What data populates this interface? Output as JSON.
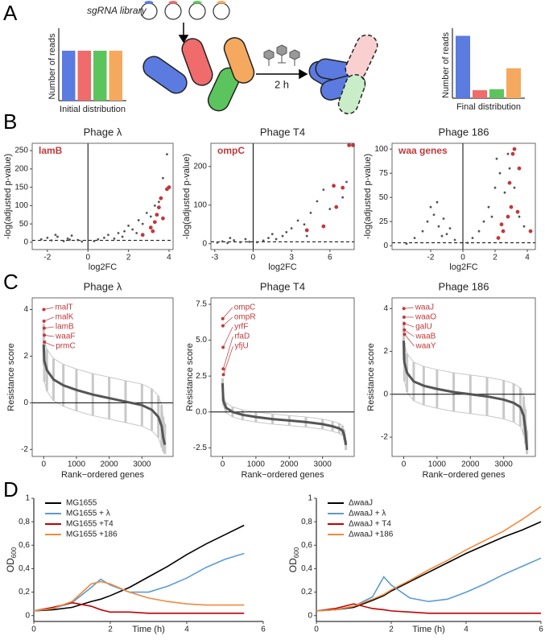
{
  "panel_labels": [
    "A",
    "B",
    "C",
    "D"
  ],
  "diagram": {
    "library_label": "sgRNA library",
    "time_label": "2 h"
  },
  "chart_data": [
    {
      "type": "bar",
      "ylabel": "Number of reads",
      "xlabel": "Initial distribution",
      "values": [
        1,
        1,
        1,
        1
      ],
      "colors": [
        "#5b7be0",
        "#f06b6b",
        "#5cc45c",
        "#f5a95e"
      ]
    },
    {
      "type": "bar",
      "ylabel": "Number of reads",
      "xlabel": "Final distribution",
      "values": [
        1.25,
        0.16,
        0.18,
        0.6
      ],
      "colors": [
        "#5b7be0",
        "#f06b6b",
        "#5cc45c",
        "#f5a95e"
      ]
    },
    {
      "type": "scatter",
      "title": "Phage λ",
      "annotation": "lamB",
      "xlabel": "log2FC",
      "ylabel": "-log(adjusted p-value)",
      "xlim": [
        -2.75,
        4.2
      ],
      "ylim": [
        -20,
        270
      ],
      "xticks": [
        -2,
        0,
        2,
        4
      ],
      "yticks": [
        0,
        50,
        100,
        150,
        200,
        250
      ],
      "threshold": 5,
      "series": [
        {
          "color": "#555555",
          "x": [
            -2.3,
            -2,
            -1.8,
            -1.5,
            -1.2,
            -1,
            -0.8,
            -0.5,
            -0.3,
            -1.6,
            -0.9,
            0.3,
            0.5,
            0.8,
            1,
            1.3,
            1.5,
            1.8,
            2,
            2.2,
            2.5,
            2.7,
            2.9,
            3.1,
            3.3,
            3.5,
            3.7,
            3.9,
            2.4,
            1.7
          ],
          "values": [
            8,
            12,
            5,
            15,
            3,
            10,
            18,
            6,
            2,
            20,
            7,
            3,
            8,
            12,
            20,
            10,
            25,
            30,
            45,
            35,
            60,
            50,
            80,
            70,
            100,
            110,
            175,
            240,
            25,
            15
          ]
        },
        {
          "color": "#c0393b",
          "x": [
            3.1,
            3.3,
            3.4,
            3.5,
            3.6,
            3.7,
            3.9,
            4.0,
            3.2,
            2.7
          ],
          "values": [
            40,
            55,
            75,
            95,
            120,
            65,
            145,
            150,
            30,
            20
          ]
        }
      ]
    },
    {
      "type": "scatter",
      "title": "Phage T4",
      "annotation": "ompC",
      "xlabel": "log2FC",
      "ylabel": "-log(adjusted p-value)",
      "xlim": [
        -3.3,
        7.9
      ],
      "ylim": [
        -15,
        260
      ],
      "xticks": [
        -3,
        0,
        3,
        6
      ],
      "yticks": [
        0,
        100,
        200
      ],
      "threshold": 5,
      "series": [
        {
          "color": "#555555",
          "x": [
            -2.8,
            -2.4,
            -2,
            -1.5,
            -1,
            -0.6,
            -0.3,
            -1.8,
            0.3,
            0.8,
            1.2,
            1.8,
            2.3,
            3,
            3.5,
            4,
            4.5,
            5,
            5.5,
            6,
            6.3,
            7,
            7.3,
            2.6,
            1.5,
            4.2
          ],
          "values": [
            3,
            6,
            2,
            9,
            4,
            12,
            5,
            15,
            4,
            8,
            15,
            12,
            20,
            40,
            60,
            50,
            80,
            110,
            140,
            90,
            150,
            120,
            160,
            30,
            25,
            20
          ]
        },
        {
          "color": "#c0393b",
          "x": [
            4.2,
            5.5,
            6.5,
            7,
            6.3,
            7.5,
            7.8
          ],
          "values": [
            35,
            45,
            95,
            145,
            150,
            255,
            255
          ]
        }
      ]
    },
    {
      "type": "scatter",
      "title": "Phage 186",
      "annotation": "waa genes",
      "xlabel": "log2FC",
      "ylabel": "-log(adjusted p-value)",
      "xlim": [
        -4.4,
        4.5
      ],
      "ylim": [
        -4,
        106
      ],
      "xticks": [
        -2,
        0,
        2,
        4
      ],
      "yticks": [
        0,
        25,
        50,
        75,
        100
      ],
      "threshold": 3,
      "series": [
        {
          "color": "#555555",
          "x": [
            -3.5,
            -3,
            -2.5,
            -2.2,
            -2,
            -1.8,
            -1.5,
            -1.2,
            -1,
            -0.8,
            -0.5,
            -1.6,
            -1.3,
            0.3,
            0.6,
            1,
            1.3,
            1.6,
            2,
            2.3,
            2.6,
            2.9,
            3.2,
            3.5,
            3.8,
            2.1,
            1.8,
            2.8
          ],
          "values": [
            2,
            8,
            15,
            25,
            40,
            32,
            20,
            28,
            12,
            18,
            6,
            45,
            10,
            3,
            8,
            15,
            25,
            40,
            60,
            75,
            55,
            80,
            60,
            30,
            20,
            90,
            30,
            95
          ]
        },
        {
          "color": "#c0393b",
          "x": [
            2.2,
            2.5,
            2.8,
            3.0,
            3.1,
            3.2,
            2.9,
            3.5,
            4.2,
            2.4,
            3.4
          ],
          "values": [
            8,
            15,
            30,
            40,
            95,
            100,
            65,
            80,
            15,
            22,
            35
          ]
        }
      ]
    },
    {
      "type": "rank",
      "title": "Phage λ",
      "xlabel": "Rank−ordered genes",
      "ylabel": "Resistance score",
      "xlim": [
        -350,
        3950
      ],
      "ylim": [
        -2.3,
        4.5
      ],
      "xticks": [
        0,
        1000,
        2000,
        3000
      ],
      "yticks": [
        -2,
        0,
        2,
        4
      ],
      "x": [
        0,
        20,
        100,
        300,
        600,
        1000,
        1500,
        2000,
        2500,
        3000,
        3300,
        3500,
        3600,
        3650,
        3700
      ],
      "series": [
        {
          "color": "#555555",
          "values": [
            2.5,
            1.8,
            1.4,
            1.0,
            0.75,
            0.55,
            0.35,
            0.2,
            0.05,
            -0.1,
            -0.3,
            -0.6,
            -1.0,
            -1.5,
            -1.8
          ]
        }
      ],
      "band": {
        "color": "#c8c8c8",
        "upper": [
          3.4,
          2.7,
          2.3,
          1.9,
          1.65,
          1.45,
          1.25,
          1.1,
          0.95,
          0.8,
          0.6,
          0.3,
          -0.1,
          -0.6,
          -0.9
        ],
        "lower": [
          1.6,
          0.9,
          0.5,
          0.1,
          -0.15,
          -0.35,
          -0.55,
          -0.7,
          -0.85,
          -1.0,
          -1.2,
          -1.5,
          -1.9,
          -2.1,
          -2.2
        ]
      },
      "highlight": {
        "color": "#c0393b",
        "labels": [
          "malT",
          "malK",
          "lamB",
          "waaF",
          "prmC"
        ],
        "x": [
          5,
          10,
          15,
          20,
          25
        ],
        "values": [
          4.0,
          3.5,
          3.2,
          2.9,
          2.6
        ]
      }
    },
    {
      "type": "rank",
      "title": "Phage T4",
      "xlabel": "Rank−ordered genes",
      "ylabel": "Resistance score",
      "xlim": [
        -350,
        3950
      ],
      "ylim": [
        -3.1,
        7.95
      ],
      "xticks": [
        0,
        1000,
        2000,
        3000
      ],
      "yticks": [
        -2.5,
        {
          "value": 0,
          "label": "0.0"
        },
        2.5,
        {
          "value": 5,
          "label": "5.0"
        },
        7.5
      ],
      "x": [
        0,
        20,
        100,
        300,
        600,
        1000,
        1500,
        2000,
        2500,
        3000,
        3300,
        3500,
        3600,
        3650,
        3700
      ],
      "series": [
        {
          "color": "#555555",
          "values": [
            2.0,
            0.8,
            0.3,
            0,
            -0.2,
            -0.35,
            -0.5,
            -0.6,
            -0.7,
            -0.85,
            -1.0,
            -1.15,
            -1.3,
            -1.6,
            -2.3
          ]
        }
      ],
      "band": {
        "color": "#c8c8c8",
        "upper": [
          2.35,
          1.15,
          0.65,
          0.35,
          0.15,
          0,
          -0.15,
          -0.25,
          -0.35,
          -0.5,
          -0.65,
          -0.8,
          -0.95,
          -1.25,
          -1.95
        ],
        "lower": [
          1.65,
          0.45,
          -0.05,
          -0.35,
          -0.55,
          -0.7,
          -0.85,
          -0.95,
          -1.05,
          -1.2,
          -1.35,
          -1.5,
          -1.65,
          -1.95,
          -2.65
        ]
      },
      "highlight": {
        "color": "#c0393b",
        "labels": [
          "ompC",
          "ompR",
          "yrfF",
          "rfaD",
          "yfjU"
        ],
        "x": [
          5,
          10,
          15,
          20,
          25
        ],
        "values": [
          6.5,
          6.0,
          4.5,
          3.0,
          2.6
        ]
      }
    },
    {
      "type": "rank",
      "title": "Phage 186",
      "xlabel": "Rank−ordered genes",
      "ylabel": "Resistance score",
      "xlim": [
        -350,
        3950
      ],
      "ylim": [
        -2.9,
        4.5
      ],
      "xticks": [
        0,
        1000,
        2000,
        3000
      ],
      "yticks": [
        -2,
        0,
        2,
        4
      ],
      "x": [
        0,
        20,
        100,
        300,
        600,
        1000,
        1500,
        2000,
        2500,
        3000,
        3300,
        3500,
        3600,
        3650,
        3700
      ],
      "series": [
        {
          "color": "#555555",
          "values": [
            2.5,
            1.5,
            1.0,
            0.6,
            0.4,
            0.25,
            0.1,
            0,
            -0.1,
            -0.25,
            -0.4,
            -0.6,
            -1.0,
            -1.6,
            -2.6
          ]
        }
      ],
      "band": {
        "color": "#c8c8c8",
        "upper": [
          3.4,
          2.4,
          1.9,
          1.5,
          1.3,
          1.15,
          1.0,
          0.9,
          0.8,
          0.65,
          0.5,
          0.3,
          -0.1,
          -0.7,
          -1.7
        ],
        "lower": [
          1.6,
          0.6,
          0.1,
          -0.3,
          -0.5,
          -0.65,
          -0.8,
          -0.9,
          -1.0,
          -1.15,
          -1.3,
          -1.5,
          -1.9,
          -2.3,
          -2.8
        ]
      },
      "highlight": {
        "color": "#c0393b",
        "labels": [
          "waaJ",
          "waaO",
          "galU",
          "waaB",
          "waaY"
        ],
        "x": [
          5,
          10,
          15,
          20,
          25
        ],
        "values": [
          4.0,
          3.6,
          3.3,
          3.0,
          2.8
        ]
      }
    },
    {
      "type": "line",
      "xlabel": "Time (h)",
      "ylabel": "OD",
      "ylabel_sub": "600",
      "xlim": [
        0,
        6
      ],
      "ylim": [
        -0.05,
        1
      ],
      "xticks": [
        0,
        2,
        4,
        6
      ],
      "yticks": [
        0,
        {
          "value": 0.2,
          "label": "0,2"
        },
        {
          "value": 0.4,
          "label": "0,4"
        },
        {
          "value": 0.6,
          "label": "0,6"
        },
        {
          "value": 0.8,
          "label": "0,8"
        },
        1
      ],
      "x": [
        0,
        0.5,
        1,
        1.5,
        1.75,
        2,
        2.5,
        3,
        3.5,
        4,
        4.5,
        5,
        5.5
      ],
      "series": [
        {
          "name": "MG1655",
          "color": "#000000",
          "values": [
            0.04,
            0.05,
            0.07,
            0.12,
            0.14,
            0.17,
            0.24,
            0.33,
            0.42,
            0.52,
            0.61,
            0.69,
            0.77
          ]
        },
        {
          "name": "MG1655 + λ",
          "color": "#5b9bd5",
          "values": [
            0.04,
            0.06,
            0.11,
            0.24,
            0.31,
            0.26,
            0.2,
            0.2,
            0.25,
            0.32,
            0.41,
            0.48,
            0.53
          ]
        },
        {
          "name": "MG1655 +T4",
          "color": "#c00000",
          "values": [
            0.04,
            0.07,
            0.11,
            0.08,
            0.05,
            0.03,
            0.03,
            0.02,
            0.02,
            0.02,
            0.02,
            0.02,
            0.02
          ]
        },
        {
          "name": "MG1655 +186",
          "color": "#f08a3c",
          "values": [
            0.04,
            0.06,
            0.12,
            0.27,
            0.29,
            0.27,
            0.2,
            0.15,
            0.12,
            0.1,
            0.09,
            0.09,
            0.09
          ]
        }
      ]
    },
    {
      "type": "line",
      "xlabel": "Time (h)",
      "ylabel": "OD",
      "ylabel_sub": "600",
      "xlim": [
        0,
        6
      ],
      "ylim": [
        -0.05,
        1
      ],
      "xticks": [
        0,
        2,
        4,
        6
      ],
      "yticks": [
        0,
        {
          "value": 0.2,
          "label": "0,2"
        },
        {
          "value": 0.4,
          "label": "0,4"
        },
        {
          "value": 0.6,
          "label": "0,6"
        },
        {
          "value": 0.8,
          "label": "0,8"
        },
        1
      ],
      "x": [
        0,
        0.5,
        1,
        1.5,
        1.8,
        2,
        2.5,
        3,
        3.5,
        4,
        4.5,
        5,
        5.5,
        6
      ],
      "series": [
        {
          "name": "ΔwaaJ",
          "color": "#000000",
          "values": [
            0.04,
            0.05,
            0.07,
            0.13,
            0.17,
            0.21,
            0.29,
            0.37,
            0.45,
            0.53,
            0.6,
            0.67,
            0.73,
            0.8
          ]
        },
        {
          "name": "ΔwaaJ + λ",
          "color": "#5b9bd5",
          "values": [
            0.04,
            0.05,
            0.08,
            0.16,
            0.33,
            0.26,
            0.15,
            0.12,
            0.14,
            0.2,
            0.27,
            0.35,
            0.42,
            0.49
          ]
        },
        {
          "name": "ΔwaaJ + T4",
          "color": "#c00000",
          "values": [
            0.04,
            0.06,
            0.1,
            0.06,
            0.05,
            0.04,
            0.03,
            0.02,
            0.02,
            0.02,
            0.02,
            0.02,
            0.02,
            0.02
          ]
        },
        {
          "name": "ΔwaaJ +186",
          "color": "#f08a3c",
          "values": [
            0.04,
            0.05,
            0.08,
            0.14,
            0.18,
            0.22,
            0.3,
            0.39,
            0.47,
            0.56,
            0.64,
            0.72,
            0.82,
            0.93
          ]
        }
      ]
    }
  ]
}
